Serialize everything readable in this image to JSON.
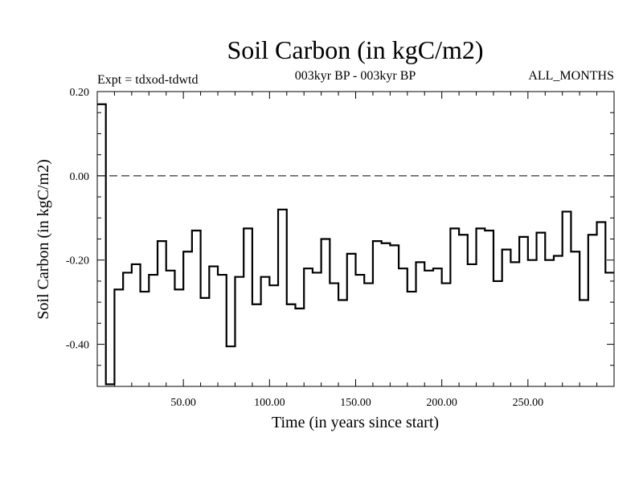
{
  "header": {
    "title": "Soil Carbon (in kgC/m2)",
    "left_note": "Expt = tdxod-tdwtd",
    "center_note": "003kyr BP - 003kyr BP",
    "right_note": "ALL_MONTHS"
  },
  "chart_data": {
    "type": "line",
    "title": "Soil Carbon (in kgC/m2)",
    "xlabel": "Time (in years since start)",
    "ylabel": "Soil Carbon (in kgC/m2)",
    "xlim": [
      0,
      300
    ],
    "ylim": [
      -0.5,
      0.2
    ],
    "x_ticks": [
      50,
      100,
      150,
      200,
      250
    ],
    "x_tick_labels": [
      "50.00",
      "100.00",
      "150.00",
      "200.00",
      "250.00"
    ],
    "y_ticks": [
      0.2,
      0.0,
      -0.2,
      -0.4
    ],
    "y_tick_labels": [
      "0.20",
      "0.00",
      "-0.20",
      "-0.40"
    ],
    "reference_line": {
      "y": 0.0,
      "style": "dashed"
    },
    "step": true,
    "grid": false,
    "legend": "none",
    "line_color": "#000000",
    "series": [
      {
        "x": [
          0,
          5,
          10,
          15,
          20,
          25,
          30,
          35,
          40,
          45,
          50,
          55,
          60,
          65,
          70,
          75,
          80,
          85,
          90,
          95,
          100,
          105,
          110,
          115,
          120,
          125,
          130,
          135,
          140,
          145,
          150,
          155,
          160,
          165,
          170,
          175,
          180,
          185,
          190,
          195,
          200,
          205,
          210,
          215,
          220,
          225,
          230,
          235,
          240,
          245,
          250,
          255,
          260,
          265,
          270,
          275,
          280,
          285,
          290,
          295,
          300
        ],
        "y": [
          0.17,
          -0.495,
          -0.27,
          -0.23,
          -0.21,
          -0.275,
          -0.235,
          -0.155,
          -0.225,
          -0.27,
          -0.18,
          -0.13,
          -0.29,
          -0.215,
          -0.235,
          -0.405,
          -0.24,
          -0.125,
          -0.305,
          -0.24,
          -0.26,
          -0.08,
          -0.305,
          -0.315,
          -0.22,
          -0.23,
          -0.15,
          -0.255,
          -0.295,
          -0.185,
          -0.235,
          -0.255,
          -0.155,
          -0.16,
          -0.165,
          -0.22,
          -0.275,
          -0.205,
          -0.225,
          -0.22,
          -0.255,
          -0.125,
          -0.14,
          -0.21,
          -0.125,
          -0.13,
          -0.25,
          -0.175,
          -0.205,
          -0.145,
          -0.2,
          -0.135,
          -0.2,
          -0.19,
          -0.085,
          -0.18,
          -0.295,
          -0.14,
          -0.11,
          -0.23,
          -0.23
        ]
      }
    ]
  }
}
